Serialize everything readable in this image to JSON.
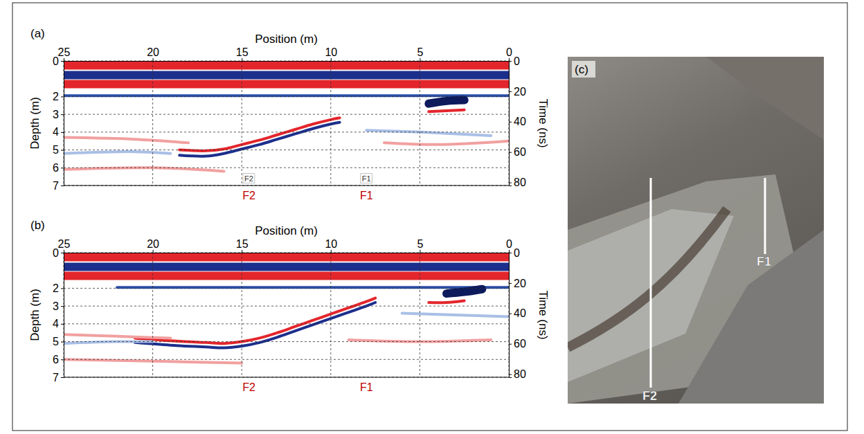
{
  "chart_data": [
    {
      "type": "radargram",
      "panel_label": "(a)",
      "xlabel": "Position (m)",
      "ylabel": "Depth (m)",
      "y2label": "Time (ns)",
      "xlim": [
        25,
        0
      ],
      "xticks": [
        25,
        20,
        15,
        10,
        5,
        0
      ],
      "ylim": [
        0,
        7
      ],
      "yticks": [
        0,
        2,
        3,
        4,
        5,
        6,
        7
      ],
      "y2lim": [
        0,
        82
      ],
      "y2ticks": [
        0,
        20,
        40,
        60,
        80
      ],
      "grid": true,
      "series": [
        {
          "color": "#e3262c",
          "line_style": "band",
          "x": [
            25,
            0
          ],
          "values": [
            0.25,
            0.25
          ]
        },
        {
          "color": "#1c2f8c",
          "line_style": "band",
          "x": [
            25,
            0
          ],
          "values": [
            0.8,
            0.8
          ]
        },
        {
          "color": "#e3262c",
          "line_style": "band",
          "x": [
            25,
            0
          ],
          "values": [
            1.3,
            1.3
          ]
        },
        {
          "color": "#2b4fa8",
          "line_style": "solid",
          "x": [
            25,
            0
          ],
          "values": [
            1.95,
            1.95
          ]
        },
        {
          "color": "#e3262c",
          "line_style": "solid",
          "x": [
            18.5,
            17,
            16,
            15,
            14,
            13,
            12,
            11,
            10,
            9.5
          ],
          "values": [
            5.0,
            5.05,
            4.95,
            4.7,
            4.45,
            4.15,
            3.85,
            3.55,
            3.3,
            3.2
          ]
        },
        {
          "color": "#1c2f8c",
          "line_style": "solid",
          "x": [
            18.5,
            17,
            16,
            15,
            14,
            13,
            12,
            11,
            10,
            9.5
          ],
          "values": [
            5.3,
            5.35,
            5.2,
            4.95,
            4.7,
            4.4,
            4.1,
            3.8,
            3.55,
            3.45
          ]
        },
        {
          "color": "#0d1a5c",
          "line_style": "band",
          "x": [
            4.5,
            3.5,
            2.5
          ],
          "values": [
            2.4,
            2.25,
            2.2
          ]
        },
        {
          "color": "#e3262c",
          "line_style": "solid",
          "x": [
            4.5,
            3.5,
            2.5
          ],
          "values": [
            2.85,
            2.8,
            2.75
          ]
        },
        {
          "color": "#f2a0a0",
          "line_style": "solid",
          "x": [
            25,
            21,
            18
          ],
          "values": [
            4.3,
            4.4,
            4.6
          ]
        },
        {
          "color": "#a9bfe6",
          "line_style": "solid",
          "x": [
            25,
            21,
            19
          ],
          "values": [
            5.2,
            5.1,
            5.2
          ]
        },
        {
          "color": "#f2a0a0",
          "line_style": "solid",
          "x": [
            25,
            20,
            16
          ],
          "values": [
            6.1,
            6.0,
            6.2
          ]
        },
        {
          "color": "#a9bfe6",
          "line_style": "solid",
          "x": [
            8,
            5,
            1
          ],
          "values": [
            3.9,
            4.0,
            4.2
          ]
        },
        {
          "color": "#f2a0a0",
          "line_style": "solid",
          "x": [
            7,
            4,
            0
          ],
          "values": [
            4.6,
            4.7,
            4.5
          ]
        }
      ],
      "annotations": [
        {
          "text": "F2",
          "x": 14.6,
          "y": 6.6
        },
        {
          "text": "F1",
          "x": 8,
          "y": 6.6
        },
        {
          "text": "F2",
          "x": 14.6,
          "color": "#c00000"
        },
        {
          "text": "F1",
          "x": 8,
          "color": "#c00000"
        }
      ]
    },
    {
      "type": "radargram",
      "panel_label": "(b)",
      "xlabel": "Position (m)",
      "ylabel": "Depth (m)",
      "y2label": "Time (ns)",
      "xlim": [
        25,
        0
      ],
      "xticks": [
        25,
        20,
        15,
        10,
        5,
        0
      ],
      "ylim": [
        0,
        7
      ],
      "yticks": [
        0,
        2,
        3,
        4,
        5,
        6,
        7
      ],
      "y2lim": [
        0,
        82
      ],
      "y2ticks": [
        0,
        20,
        40,
        60,
        80
      ],
      "grid": true,
      "series": [
        {
          "color": "#e3262c",
          "line_style": "band",
          "x": [
            25,
            0
          ],
          "values": [
            0.25,
            0.25
          ]
        },
        {
          "color": "#1c2f8c",
          "line_style": "band",
          "x": [
            25,
            0
          ],
          "values": [
            0.8,
            0.8
          ]
        },
        {
          "color": "#e3262c",
          "line_style": "band",
          "x": [
            25,
            0
          ],
          "values": [
            1.3,
            1.3
          ]
        },
        {
          "color": "#2b4fa8",
          "line_style": "solid",
          "x": [
            22,
            0
          ],
          "values": [
            1.95,
            1.95
          ]
        },
        {
          "color": "#e3262c",
          "line_style": "solid",
          "x": [
            21,
            19,
            17,
            16,
            15,
            14,
            13,
            12,
            11,
            10,
            9,
            8,
            7.5
          ],
          "values": [
            4.8,
            4.95,
            5.05,
            5.1,
            5.0,
            4.8,
            4.5,
            4.15,
            3.8,
            3.45,
            3.1,
            2.75,
            2.55
          ]
        },
        {
          "color": "#1c2f8c",
          "line_style": "solid",
          "x": [
            21,
            19,
            17,
            16,
            15,
            14,
            13,
            12,
            11,
            10,
            9,
            8,
            7.5
          ],
          "values": [
            5.05,
            5.2,
            5.3,
            5.35,
            5.25,
            5.05,
            4.75,
            4.4,
            4.05,
            3.7,
            3.35,
            3.0,
            2.8
          ]
        },
        {
          "color": "#0d1a5c",
          "line_style": "band",
          "x": [
            3.5,
            2.5,
            1.5
          ],
          "values": [
            2.3,
            2.2,
            2.05
          ]
        },
        {
          "color": "#e3262c",
          "line_style": "solid",
          "x": [
            4.5,
            3.5,
            2.5
          ],
          "values": [
            2.8,
            2.8,
            2.7
          ]
        },
        {
          "color": "#f2a0a0",
          "line_style": "solid",
          "x": [
            25,
            22,
            19
          ],
          "values": [
            4.6,
            4.7,
            4.8
          ]
        },
        {
          "color": "#a9bfe6",
          "line_style": "solid",
          "x": [
            25,
            22,
            20
          ],
          "values": [
            5.1,
            5.0,
            5.0
          ]
        },
        {
          "color": "#f2a0a0",
          "line_style": "solid",
          "x": [
            25,
            20,
            15
          ],
          "values": [
            6.0,
            6.1,
            6.2
          ]
        },
        {
          "color": "#a9bfe6",
          "line_style": "solid",
          "x": [
            6,
            3,
            0
          ],
          "values": [
            3.4,
            3.5,
            3.6
          ]
        },
        {
          "color": "#f2a0a0",
          "line_style": "solid",
          "x": [
            9,
            5,
            1
          ],
          "values": [
            4.9,
            5.0,
            4.9
          ]
        }
      ],
      "annotations": [
        {
          "text": "F2",
          "x": 14.6,
          "color": "#c00000"
        },
        {
          "text": "F1",
          "x": 8,
          "color": "#c00000"
        }
      ]
    }
  ],
  "photo": {
    "label": "(c)",
    "markers": [
      {
        "text": "F2"
      },
      {
        "text": "F1"
      }
    ]
  }
}
